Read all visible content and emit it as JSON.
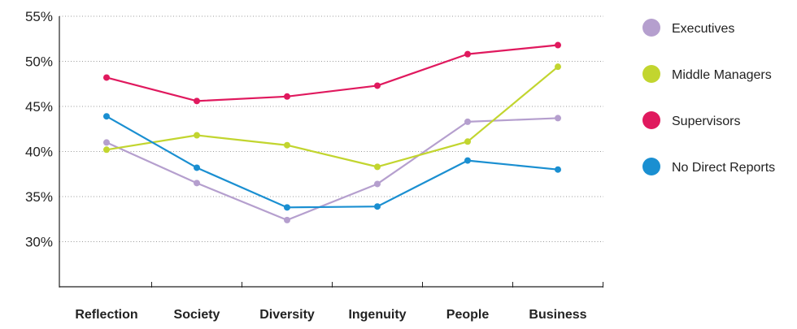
{
  "chart_data": {
    "type": "line",
    "categories": [
      "Reflection",
      "Society",
      "Diversity",
      "Ingenuity",
      "People",
      "Business"
    ],
    "y_ticks": [
      "55%",
      "50%",
      "45%",
      "40%",
      "35%",
      "30%"
    ],
    "y_tick_values": [
      55,
      50,
      45,
      40,
      35,
      30
    ],
    "ylim": [
      25,
      55
    ],
    "grid": "horizontal-dotted",
    "legend_position": "right",
    "series": [
      {
        "name": "Executives",
        "color": "#b59fce",
        "values": [
          41.0,
          36.5,
          32.4,
          36.4,
          43.3,
          43.7
        ]
      },
      {
        "name": "Middle Managers",
        "color": "#c2d52f",
        "values": [
          40.2,
          41.8,
          40.7,
          38.3,
          41.1,
          49.4
        ]
      },
      {
        "name": "Supervisors",
        "color": "#e0195e",
        "values": [
          48.2,
          45.6,
          46.1,
          47.3,
          50.8,
          51.8
        ]
      },
      {
        "name": "No Direct Reports",
        "color": "#1a8fd1",
        "values": [
          43.9,
          38.2,
          33.8,
          33.9,
          39.0,
          38.0
        ]
      }
    ]
  }
}
